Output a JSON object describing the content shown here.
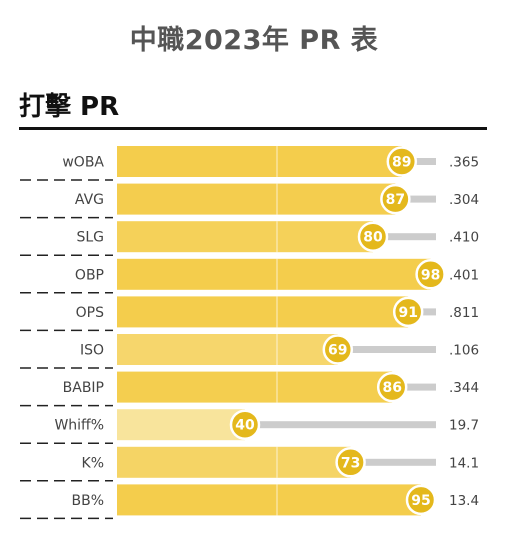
{
  "page": {
    "title": "中職2023年 PR 表",
    "section_title": "打擊 PR"
  },
  "colors": {
    "bar_base": "#f4cd4c",
    "bar_light": "#f8e49c",
    "marker": "#e4b81c",
    "track": "#cccccc",
    "text": "#444444"
  },
  "chart_data": {
    "type": "bar",
    "orientation": "horizontal",
    "title": "",
    "xlim": [
      0,
      100
    ],
    "categories": [
      "wOBA",
      "AVG",
      "SLG",
      "OBP",
      "OPS",
      "ISO",
      "BABIP",
      "Whiff%",
      "K%",
      "BB%"
    ],
    "series": [
      {
        "values": [
          89,
          87,
          80,
          98,
          91,
          69,
          86,
          40,
          73,
          95
        ]
      }
    ],
    "stat_values": [
      ".365",
      ".304",
      ".410",
      ".401",
      ".811",
      ".106",
      ".344",
      "19.7",
      "14.1",
      "13.4"
    ]
  }
}
